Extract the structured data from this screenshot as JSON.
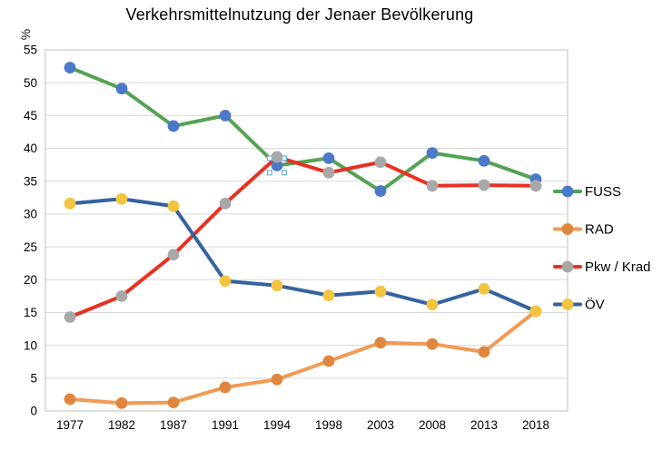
{
  "title": "Verkehrsmittelnutzung der Jenaer Bevölkerung",
  "chart_data": {
    "type": "line",
    "title": "Verkehrsmittelnutzung der Jenaer Bevölkerung",
    "ylabel": "%",
    "xlabel": "",
    "ylim": [
      0,
      55
    ],
    "grid": "horizontal",
    "legend_position": "right",
    "categories": [
      "1977",
      "1982",
      "1987",
      "1991",
      "1994",
      "1998",
      "2003",
      "2008",
      "2013",
      "2018"
    ],
    "y_ticks": [
      0,
      5,
      10,
      15,
      20,
      25,
      30,
      35,
      40,
      45,
      50,
      55
    ],
    "series": [
      {
        "name": "FUSS",
        "line_color": "#55A254",
        "marker_color": "#4C79C9",
        "values": [
          52.3,
          49.1,
          43.4,
          45.0,
          37.4,
          38.5,
          33.5,
          39.3,
          38.1,
          35.3
        ]
      },
      {
        "name": "RAD",
        "line_color": "#F09B55",
        "marker_color": "#E0863E",
        "values": [
          1.8,
          1.2,
          1.3,
          3.6,
          4.8,
          7.6,
          10.4,
          10.2,
          9.0,
          15.2
        ]
      },
      {
        "name": "Pkw / Krad",
        "line_color": "#E73223",
        "marker_color": "#A8A8A8",
        "values": [
          14.3,
          17.5,
          23.8,
          31.6,
          38.7,
          36.3,
          37.9,
          34.3,
          34.4,
          34.3
        ]
      },
      {
        "name": "ÖV",
        "line_color": "#35639F",
        "marker_color": "#F2C440",
        "values": [
          31.6,
          32.3,
          31.2,
          19.8,
          19.1,
          17.6,
          18.2,
          16.2,
          18.6,
          15.2
        ]
      }
    ],
    "selected_point": {
      "series_index": 0,
      "category_index": 4,
      "handle_color": "#6FB3E0"
    },
    "colors": {
      "frame": "#bfbfbf",
      "gridline": "#d9d9d9",
      "text": "#000000"
    }
  }
}
